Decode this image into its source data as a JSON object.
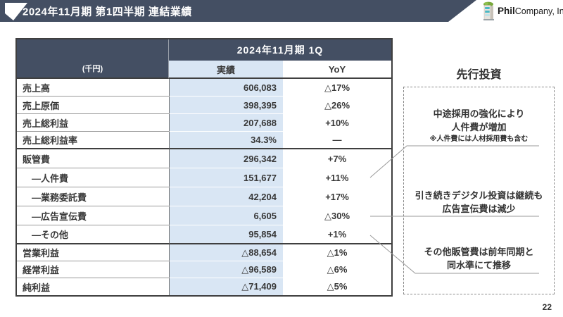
{
  "page": {
    "title": "2024年11月期 第1四半期 連結業績",
    "page_number": "22",
    "logo": {
      "brand_bold": "Phil",
      "brand_rest": "Company, Inc",
      "icon": "building-icon"
    }
  },
  "table": {
    "period_header": "2024年11月期 1Q",
    "unit_label": "(千円)",
    "columns": [
      "実績",
      "YoY"
    ],
    "groups": [
      {
        "rows": [
          {
            "label": "売上高",
            "actual": "606,083",
            "yoy": "△17%"
          },
          {
            "label": "売上原価",
            "actual": "398,395",
            "yoy": "△26%"
          },
          {
            "label": "売上総利益",
            "actual": "207,688",
            "yoy": "+10%"
          },
          {
            "label": "売上総利益率",
            "actual": "34.3%",
            "yoy": "—"
          }
        ]
      },
      {
        "rows": [
          {
            "label": "販管費",
            "actual": "296,342",
            "yoy": "+7%"
          },
          {
            "label": "―人件費",
            "actual": "151,677",
            "yoy": "+11%",
            "indent": true,
            "bullet": true
          },
          {
            "label": "―業務委託費",
            "actual": "42,204",
            "yoy": "+17%",
            "indent": true
          },
          {
            "label": "―広告宣伝費",
            "actual": "6,605",
            "yoy": "△30%",
            "indent": true,
            "bullet": true
          },
          {
            "label": "―その他",
            "actual": "95,854",
            "yoy": "+1%",
            "indent": true,
            "bullet": true
          }
        ]
      },
      {
        "rows": [
          {
            "label": "営業利益",
            "actual": "△88,654",
            "yoy": "△1%"
          },
          {
            "label": "経常利益",
            "actual": "△96,589",
            "yoy": "△6%"
          },
          {
            "label": "純利益",
            "actual": "△71,409",
            "yoy": "△5%"
          }
        ]
      }
    ]
  },
  "side_panel": {
    "title": "先行投資",
    "notes": [
      {
        "lines": [
          "中途採用の強化により",
          "人件費が増加"
        ],
        "sub": "※人件費には人材採用費も含む"
      },
      {
        "lines": [
          "引き続きデジタル投資は継続も",
          "広告宣伝費は減少"
        ]
      },
      {
        "lines": [
          "その他販管費は前年同期と",
          "同水準にて推移"
        ]
      }
    ]
  },
  "colors": {
    "header_bg": "#444F63",
    "highlight_blue": "#D9E6F4",
    "text": "#383838",
    "connector_gray": "#999999",
    "bullet_dark": "#2e2e2e"
  }
}
